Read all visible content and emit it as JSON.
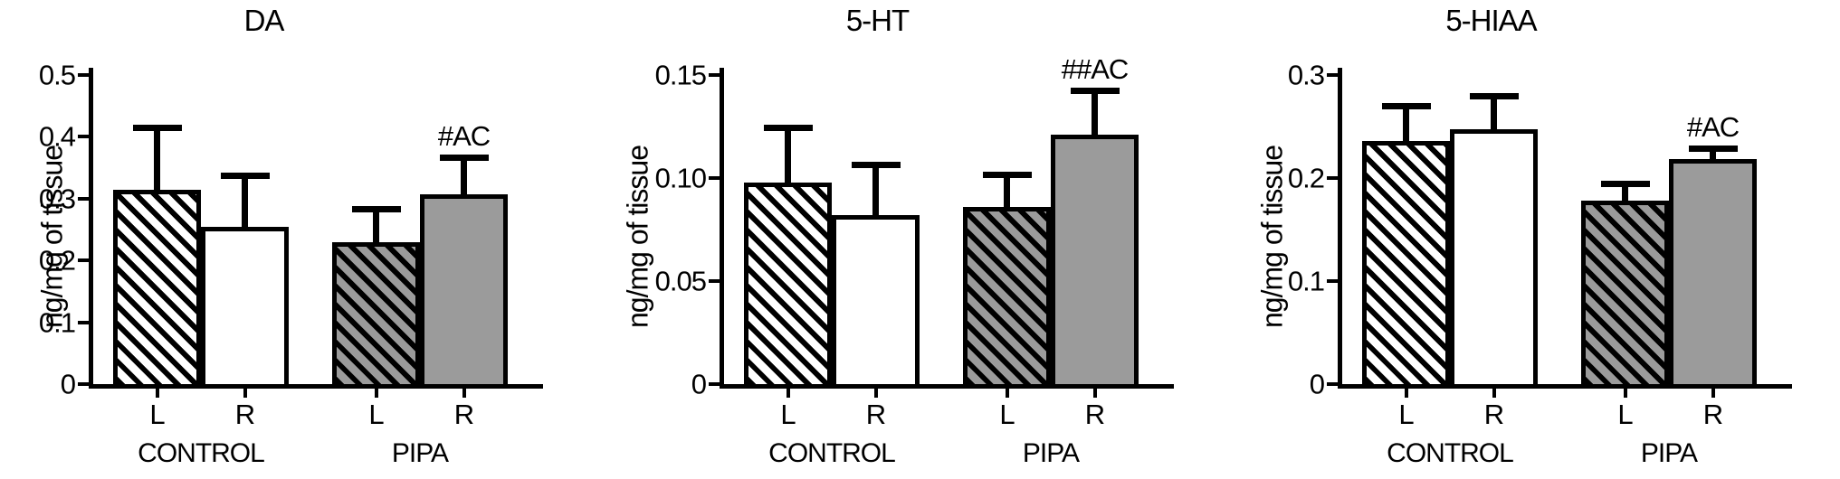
{
  "colors": {
    "ink": "#000000",
    "bar_gray": "#9b9b9b",
    "background": "#ffffff"
  },
  "chart_data": [
    {
      "type": "bar",
      "title": "DA",
      "ylabel": "ng/mg of tissue",
      "ylim": [
        0,
        0.5
      ],
      "grid": false,
      "legend": null,
      "yticks": [
        {
          "value": 0,
          "label": "0"
        },
        {
          "value": 0.1,
          "label": "0.1"
        },
        {
          "value": 0.2,
          "label": "0.2"
        },
        {
          "value": 0.3,
          "label": "0.3"
        },
        {
          "value": 0.4,
          "label": "0.4"
        },
        {
          "value": 0.5,
          "label": "0.5"
        }
      ],
      "groups": [
        "CONTROL",
        "PIPA"
      ],
      "bars": [
        {
          "group": "CONTROL",
          "side": "L",
          "value": 0.315,
          "error": 0.105,
          "fill": "hatched-white",
          "annotation": ""
        },
        {
          "group": "CONTROL",
          "side": "R",
          "value": 0.255,
          "error": 0.088,
          "fill": "white",
          "annotation": ""
        },
        {
          "group": "PIPA",
          "side": "L",
          "value": 0.23,
          "error": 0.058,
          "fill": "hatched-gray",
          "annotation": ""
        },
        {
          "group": "PIPA",
          "side": "R",
          "value": 0.307,
          "error": 0.065,
          "fill": "gray",
          "annotation": "#AC"
        }
      ]
    },
    {
      "type": "bar",
      "title": "5-HT",
      "ylabel": "ng/mg of tissue",
      "ylim": [
        0,
        0.15
      ],
      "grid": false,
      "legend": null,
      "yticks": [
        {
          "value": 0,
          "label": "0"
        },
        {
          "value": 0.05,
          "label": "0.05"
        },
        {
          "value": 0.1,
          "label": "0.10"
        },
        {
          "value": 0.15,
          "label": "0.15"
        }
      ],
      "groups": [
        "CONTROL",
        "PIPA"
      ],
      "bars": [
        {
          "group": "CONTROL",
          "side": "L",
          "value": 0.098,
          "error": 0.028,
          "fill": "hatched-white",
          "annotation": ""
        },
        {
          "group": "CONTROL",
          "side": "R",
          "value": 0.082,
          "error": 0.026,
          "fill": "white",
          "annotation": ""
        },
        {
          "group": "PIPA",
          "side": "L",
          "value": 0.086,
          "error": 0.017,
          "fill": "hatched-gray",
          "annotation": ""
        },
        {
          "group": "PIPA",
          "side": "R",
          "value": 0.121,
          "error": 0.023,
          "fill": "gray",
          "annotation": "##AC"
        }
      ]
    },
    {
      "type": "bar",
      "title": "5-HIAA",
      "ylabel": "ng/mg of tissue",
      "ylim": [
        0,
        0.3
      ],
      "grid": false,
      "legend": null,
      "yticks": [
        {
          "value": 0,
          "label": "0"
        },
        {
          "value": 0.1,
          "label": "0.1"
        },
        {
          "value": 0.2,
          "label": "0.2"
        },
        {
          "value": 0.3,
          "label": "0.3"
        }
      ],
      "groups": [
        "CONTROL",
        "PIPA"
      ],
      "bars": [
        {
          "group": "CONTROL",
          "side": "L",
          "value": 0.236,
          "error": 0.037,
          "fill": "hatched-white",
          "annotation": ""
        },
        {
          "group": "CONTROL",
          "side": "R",
          "value": 0.247,
          "error": 0.035,
          "fill": "white",
          "annotation": ""
        },
        {
          "group": "PIPA",
          "side": "L",
          "value": 0.178,
          "error": 0.019,
          "fill": "hatched-gray",
          "annotation": ""
        },
        {
          "group": "PIPA",
          "side": "R",
          "value": 0.218,
          "error": 0.013,
          "fill": "gray",
          "annotation": "#AC"
        }
      ]
    }
  ]
}
